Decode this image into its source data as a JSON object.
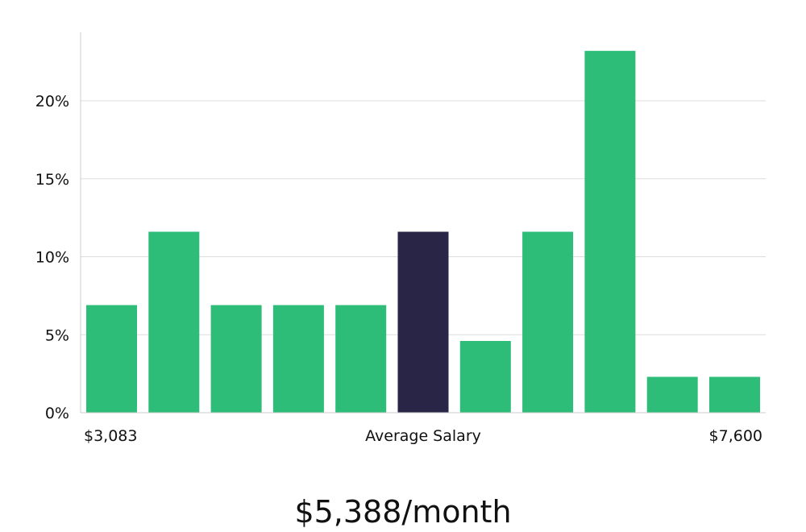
{
  "chart_data": {
    "type": "bar",
    "title": "",
    "xlabel": "Average Salary",
    "ylabel": "",
    "ylim": [
      0,
      25
    ],
    "yticks": [
      0,
      5,
      10,
      15,
      20
    ],
    "ytick_labels": [
      "0%",
      "5%",
      "10%",
      "15%",
      "20%"
    ],
    "grid": true,
    "x_range_labels": {
      "min": "$3,083",
      "center": "Average Salary",
      "max": "$7,600"
    },
    "bins": [
      "1",
      "2",
      "3",
      "4",
      "5",
      "6",
      "7",
      "8",
      "9",
      "10",
      "11"
    ],
    "values": [
      6.9,
      11.6,
      6.9,
      6.9,
      6.9,
      11.6,
      4.6,
      11.6,
      23.2,
      2.3,
      2.3
    ],
    "highlight_index": 5,
    "summary": "$5,388/month"
  },
  "colors": {
    "bar": "#2dbd78",
    "highlight": "#292546",
    "grid": "#dddddd",
    "axis": "#cccccc"
  }
}
